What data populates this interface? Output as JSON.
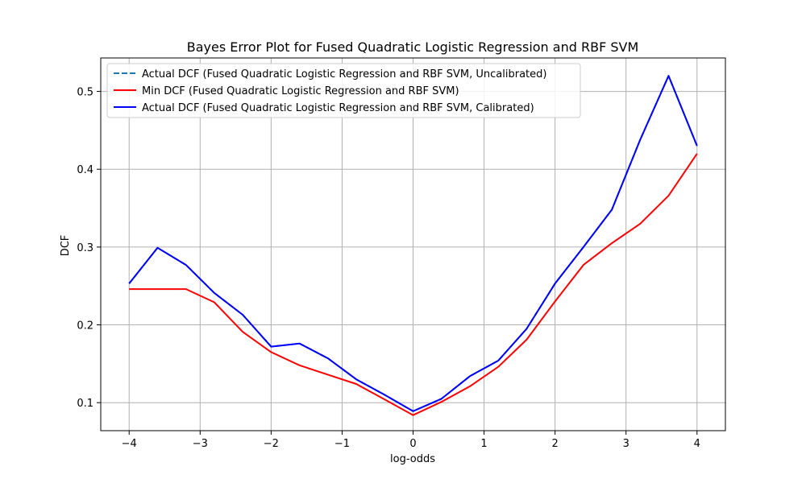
{
  "chart_data": {
    "type": "line",
    "title": "Bayes Error Plot for Fused Quadratic Logistic Regression and RBF SVM",
    "xlabel": "log-odds",
    "ylabel": "DCF",
    "xlim": [
      -4.4,
      4.4
    ],
    "ylim": [
      0.064,
      0.543
    ],
    "xticks": [
      -4,
      -3,
      -2,
      -1,
      0,
      1,
      2,
      3,
      4
    ],
    "yticks": [
      0.1,
      0.2,
      0.3,
      0.4,
      0.5
    ],
    "grid": true,
    "legend_position": "top-left",
    "x": [
      -4.0,
      -3.6,
      -3.2,
      -2.8,
      -2.4,
      -2.0,
      -1.6,
      -1.2,
      -0.8,
      -0.4,
      0.0,
      0.4,
      0.8,
      1.2,
      1.6,
      2.0,
      2.4,
      2.8,
      3.2,
      3.6,
      4.0
    ],
    "series": [
      {
        "name": "Actual DCF (Fused Quadratic Logistic Regression and RBF SVM, Uncalibrated)",
        "color": "#1f77b4",
        "style": "dashed",
        "values": [
          0.253,
          0.299,
          0.277,
          0.241,
          0.213,
          0.172,
          0.176,
          0.157,
          0.13,
          0.11,
          0.089,
          0.105,
          0.134,
          0.154,
          0.195,
          0.253,
          0.3,
          0.348,
          0.438,
          0.52,
          0.43
        ]
      },
      {
        "name": "Min DCF (Fused Quadratic Logistic Regression and RBF SVM)",
        "color": "#ff0000",
        "style": "solid",
        "values": [
          0.246,
          0.246,
          0.246,
          0.229,
          0.191,
          0.165,
          0.148,
          0.136,
          0.124,
          0.104,
          0.084,
          0.101,
          0.121,
          0.146,
          0.181,
          0.23,
          0.277,
          0.305,
          0.33,
          0.366,
          0.42
        ]
      },
      {
        "name": "Actual DCF (Fused Quadratic Logistic Regression and RBF SVM, Calibrated)",
        "color": "#0000ff",
        "style": "solid",
        "values": [
          0.253,
          0.299,
          0.277,
          0.241,
          0.213,
          0.172,
          0.176,
          0.157,
          0.13,
          0.11,
          0.089,
          0.105,
          0.134,
          0.154,
          0.195,
          0.253,
          0.3,
          0.348,
          0.438,
          0.52,
          0.43
        ]
      }
    ]
  }
}
